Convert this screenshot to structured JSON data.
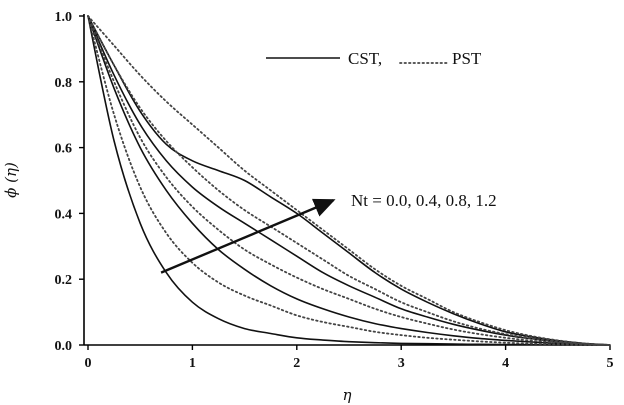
{
  "chart_data": {
    "type": "line",
    "title": "",
    "xlabel": "η",
    "ylabel": "ϕ (η)",
    "xlim": [
      0,
      5
    ],
    "ylim": [
      0,
      1
    ],
    "xticks": [
      0,
      1,
      2,
      3,
      4,
      5
    ],
    "yticks": [
      0.0,
      0.2,
      0.4,
      0.6,
      0.8,
      1.0
    ],
    "xtick_labels": [
      "0",
      "1",
      "2",
      "3",
      "4",
      "5"
    ],
    "ytick_labels": [
      "0.0",
      "0.2",
      "0.4",
      "0.6",
      "0.8",
      "1.0"
    ],
    "grid": false,
    "legend": {
      "placement": "top-right",
      "solid_label": "CST,",
      "dotted_label": "PST"
    },
    "annotation": {
      "text": "Nt = 0.0, 0.4, 0.8, 1.2",
      "arrow_from": [
        0.7,
        0.22
      ],
      "arrow_to": [
        2.35,
        0.44
      ]
    },
    "x": [
      0,
      0.25,
      0.5,
      0.75,
      1.0,
      1.25,
      1.5,
      1.75,
      2.0,
      2.25,
      2.5,
      2.75,
      3.0,
      3.25,
      3.5,
      3.75,
      4.0,
      4.25,
      4.5,
      4.75,
      5.0
    ],
    "series": [
      {
        "style": "solid",
        "values": [
          1.0,
          0.62,
          0.37,
          0.22,
          0.13,
          0.08,
          0.05,
          0.035,
          0.022,
          0.015,
          0.01,
          0.007,
          0.005,
          0.004,
          0.003,
          0.002,
          0.0015,
          0.001,
          0.0005,
          0.0002,
          0.0
        ]
      },
      {
        "style": "solid",
        "values": [
          1.0,
          0.78,
          0.6,
          0.47,
          0.37,
          0.29,
          0.23,
          0.18,
          0.14,
          0.11,
          0.085,
          0.065,
          0.05,
          0.038,
          0.028,
          0.02,
          0.014,
          0.009,
          0.005,
          0.002,
          0.0
        ]
      },
      {
        "style": "solid",
        "values": [
          1.0,
          0.82,
          0.67,
          0.56,
          0.48,
          0.42,
          0.37,
          0.32,
          0.27,
          0.22,
          0.18,
          0.145,
          0.11,
          0.085,
          0.063,
          0.045,
          0.03,
          0.019,
          0.01,
          0.004,
          0.0
        ]
      },
      {
        "style": "solid",
        "values": [
          1.0,
          0.85,
          0.71,
          0.61,
          0.56,
          0.53,
          0.5,
          0.45,
          0.4,
          0.34,
          0.28,
          0.22,
          0.17,
          0.13,
          0.095,
          0.065,
          0.04,
          0.025,
          0.013,
          0.005,
          0.0
        ]
      },
      {
        "style": "dotted",
        "values": [
          1.0,
          0.7,
          0.48,
          0.34,
          0.25,
          0.19,
          0.15,
          0.12,
          0.09,
          0.07,
          0.055,
          0.04,
          0.03,
          0.022,
          0.016,
          0.011,
          0.007,
          0.004,
          0.002,
          0.001,
          0.0
        ]
      },
      {
        "style": "dotted",
        "values": [
          1.0,
          0.8,
          0.63,
          0.51,
          0.42,
          0.35,
          0.29,
          0.245,
          0.205,
          0.17,
          0.14,
          0.11,
          0.085,
          0.065,
          0.047,
          0.033,
          0.022,
          0.013,
          0.007,
          0.003,
          0.0
        ]
      },
      {
        "style": "dotted",
        "values": [
          1.0,
          0.85,
          0.72,
          0.62,
          0.54,
          0.47,
          0.41,
          0.36,
          0.31,
          0.26,
          0.21,
          0.17,
          0.13,
          0.1,
          0.072,
          0.05,
          0.033,
          0.02,
          0.01,
          0.004,
          0.0
        ]
      },
      {
        "style": "dotted",
        "values": [
          1.0,
          0.91,
          0.82,
          0.74,
          0.67,
          0.6,
          0.53,
          0.47,
          0.41,
          0.35,
          0.29,
          0.23,
          0.18,
          0.14,
          0.1,
          0.07,
          0.045,
          0.027,
          0.014,
          0.005,
          0.0
        ]
      }
    ]
  }
}
